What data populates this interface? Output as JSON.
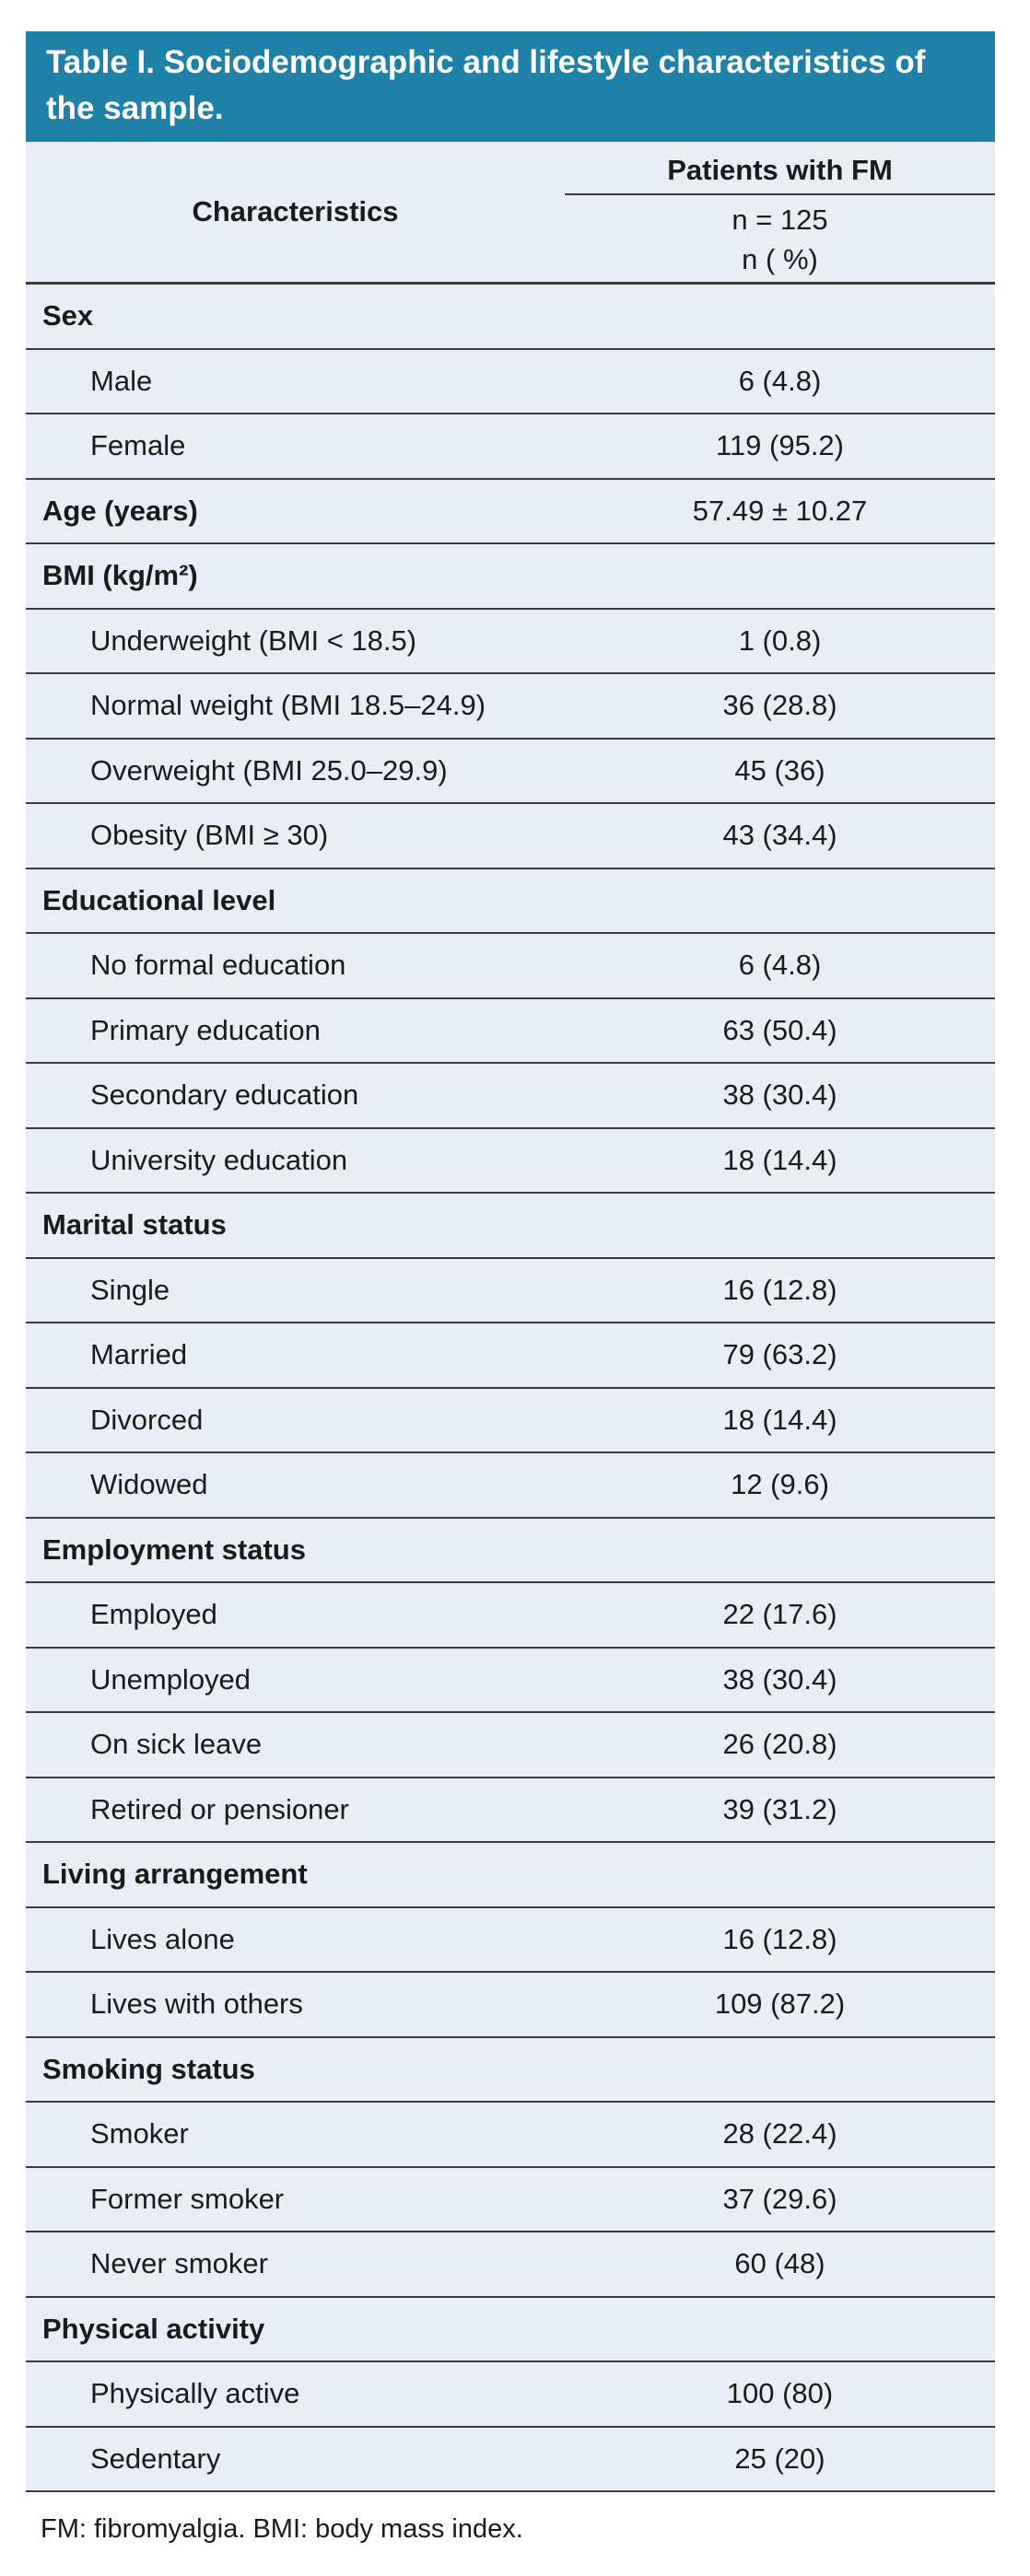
{
  "title": "Table I. Sociodemographic and lifestyle characteristics of the sample.",
  "table": {
    "col_left_header": "Characteristics",
    "col_right_header": "Patients with FM",
    "col_right_sub_n": "n = 125",
    "col_right_sub_pct": "n ( %)",
    "rows": [
      {
        "type": "section",
        "label": "Sex",
        "value": ""
      },
      {
        "type": "item",
        "label": "Male",
        "value": "6 (4.8)"
      },
      {
        "type": "item",
        "label": "Female",
        "value": "119 (95.2)"
      },
      {
        "type": "section",
        "label": "Age (years)",
        "value": "57.49 ± 10.27"
      },
      {
        "type": "section",
        "label": "BMI (kg/m²)",
        "value": ""
      },
      {
        "type": "item",
        "label": "Underweight (BMI < 18.5)",
        "value": "1 (0.8)"
      },
      {
        "type": "item",
        "label": "Normal weight (BMI 18.5–24.9)",
        "value": "36 (28.8)"
      },
      {
        "type": "item",
        "label": "Overweight (BMI 25.0–29.9)",
        "value": "45 (36)"
      },
      {
        "type": "item",
        "label": "Obesity (BMI ≥ 30)",
        "value": "43 (34.4)"
      },
      {
        "type": "section",
        "label": "Educational level",
        "value": ""
      },
      {
        "type": "item",
        "label": "No formal education",
        "value": "6 (4.8)"
      },
      {
        "type": "item",
        "label": "Primary education",
        "value": "63 (50.4)"
      },
      {
        "type": "item",
        "label": "Secondary education",
        "value": "38 (30.4)"
      },
      {
        "type": "item",
        "label": "University education",
        "value": "18 (14.4)"
      },
      {
        "type": "section",
        "label": "Marital status",
        "value": ""
      },
      {
        "type": "item",
        "label": "Single",
        "value": "16 (12.8)"
      },
      {
        "type": "item",
        "label": "Married",
        "value": "79 (63.2)"
      },
      {
        "type": "item",
        "label": "Divorced",
        "value": "18 (14.4)"
      },
      {
        "type": "item",
        "label": "Widowed",
        "value": "12 (9.6)"
      },
      {
        "type": "section",
        "label": "Employment status",
        "value": ""
      },
      {
        "type": "item",
        "label": "Employed",
        "value": "22 (17.6)"
      },
      {
        "type": "item",
        "label": "Unemployed",
        "value": "38 (30.4)"
      },
      {
        "type": "item",
        "label": "On sick leave",
        "value": "26 (20.8)"
      },
      {
        "type": "item",
        "label": "Retired or pensioner",
        "value": "39 (31.2)"
      },
      {
        "type": "section",
        "label": "Living arrangement",
        "value": ""
      },
      {
        "type": "item",
        "label": "Lives alone",
        "value": "16 (12.8)"
      },
      {
        "type": "item",
        "label": "Lives with others",
        "value": "109 (87.2)"
      },
      {
        "type": "section",
        "label": "Smoking status",
        "value": ""
      },
      {
        "type": "item",
        "label": "Smoker",
        "value": "28 (22.4)"
      },
      {
        "type": "item",
        "label": "Former smoker",
        "value": "37 (29.6)"
      },
      {
        "type": "item",
        "label": "Never smoker",
        "value": "60 (48)"
      },
      {
        "type": "section",
        "label": "Physical activity",
        "value": ""
      },
      {
        "type": "item",
        "label": "Physically active",
        "value": "100 (80)"
      },
      {
        "type": "item",
        "label": "Sedentary",
        "value": "25 (20)"
      }
    ]
  },
  "footnote": "FM: fibromyalgia. BMI: body mass index.",
  "colors": {
    "accent_teal": "#1f80a8",
    "row_background": "#e9eef6",
    "border": "#3b3b3b",
    "title_text": "#ffffff",
    "body_text": "#1a1a1a"
  }
}
